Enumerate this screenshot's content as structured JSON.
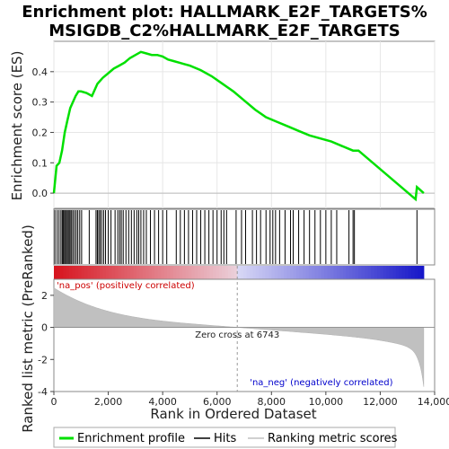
{
  "chart_data": {
    "type": "line",
    "title_line1": "Enrichment plot: HALLMARK_E2F_TARGETS%",
    "title_line2": "MSIGDB_C2%HALLMARK_E2F_TARGETS",
    "xlabel": "Rank in Ordered Dataset",
    "ylabel_top": "Enrichment score (ES)",
    "ylabel_bottom": "Ranked list metric (PreRanked)",
    "xlim": [
      0,
      14000
    ],
    "x_ticks": [
      0,
      2000,
      4000,
      6000,
      8000,
      10000,
      12000,
      14000
    ],
    "x_tick_labels": [
      "0",
      "2,000",
      "4,000",
      "6,000",
      "8,000",
      "10,000",
      "12,000",
      "14,000"
    ],
    "es_ylim": [
      -0.05,
      0.5
    ],
    "es_ticks": [
      0.0,
      0.1,
      0.2,
      0.3,
      0.4
    ],
    "es_tick_labels": [
      "0.0",
      "0.1",
      "0.2",
      "0.3",
      "0.4"
    ],
    "metric_ylim": [
      -4,
      3
    ],
    "metric_ticks": [
      2,
      0,
      -2,
      -4
    ],
    "metric_tick_labels": [
      "2",
      "0",
      "-2",
      "-4"
    ],
    "total_rank": 13600,
    "zero_cross_rank": 6743,
    "zero_cross_label": "Zero cross at 6743",
    "pos_label": "'na_pos' (positively correlated)",
    "neg_label": "'na_neg' (negatively correlated)",
    "series": [
      {
        "name": "Enrichment profile",
        "color": "#00e000",
        "x": [
          0,
          100,
          200,
          300,
          400,
          500,
          600,
          700,
          800,
          900,
          1000,
          1200,
          1400,
          1600,
          1800,
          2000,
          2200,
          2400,
          2600,
          2800,
          3000,
          3200,
          3400,
          3600,
          3800,
          4000,
          4200,
          4400,
          4600,
          4800,
          5000,
          5400,
          5800,
          6200,
          6600,
          7000,
          7400,
          7800,
          8200,
          8600,
          9000,
          9400,
          9800,
          10200,
          10600,
          11000,
          11200,
          13300,
          13350,
          13600
        ],
        "y": [
          0.0,
          0.09,
          0.1,
          0.14,
          0.2,
          0.24,
          0.28,
          0.3,
          0.32,
          0.335,
          0.335,
          0.33,
          0.32,
          0.36,
          0.38,
          0.395,
          0.41,
          0.42,
          0.43,
          0.445,
          0.455,
          0.465,
          0.46,
          0.455,
          0.455,
          0.45,
          0.44,
          0.435,
          0.43,
          0.425,
          0.42,
          0.405,
          0.385,
          0.36,
          0.335,
          0.305,
          0.275,
          0.25,
          0.235,
          0.22,
          0.205,
          0.19,
          0.18,
          0.17,
          0.155,
          0.14,
          0.14,
          -0.02,
          0.02,
          0.0
        ]
      }
    ],
    "hits_name": "Hits",
    "ranking_name": "Ranking metric scores",
    "hit_ranks": [
      40,
      120,
      190,
      260,
      310,
      350,
      390,
      430,
      470,
      520,
      560,
      600,
      650,
      700,
      760,
      820,
      880,
      950,
      1020,
      1300,
      1550,
      1600,
      1650,
      1700,
      1760,
      1830,
      1900,
      2000,
      2100,
      2250,
      2350,
      2420,
      2480,
      2550,
      2650,
      2750,
      2850,
      2950,
      3050,
      3120,
      3200,
      3300,
      3400,
      3550,
      3700,
      3850,
      4000,
      4150,
      4500,
      4650,
      4800,
      4950,
      5100,
      5250,
      5400,
      5550,
      5700,
      5850,
      6000,
      6150,
      6250,
      6350,
      6700,
      6900,
      7050,
      7300,
      7450,
      7600,
      7800,
      7950,
      8050,
      8150,
      8300,
      8500,
      8700,
      8800,
      9000,
      9200,
      9400,
      9600,
      9800,
      10000,
      10200,
      10400,
      10850,
      11000,
      11050,
      13350
    ]
  },
  "legend": {
    "enrichment_profile": "Enrichment profile",
    "hits": "Hits",
    "ranking": "Ranking metric scores",
    "colors": {
      "profile": "#00e000",
      "hits": "#000000",
      "ranking": "#c0c0c0"
    }
  }
}
